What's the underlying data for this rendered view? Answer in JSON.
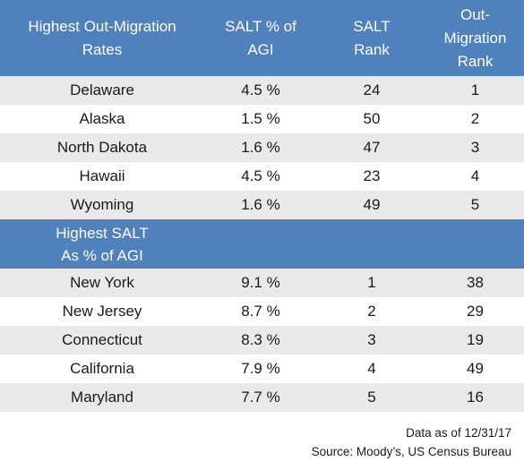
{
  "chart_data": {
    "type": "table",
    "sections": [
      {
        "header": [
          "Highest Out-Migration Rates",
          "SALT % of AGI",
          "SALT Rank",
          "Out-Migration Rank"
        ],
        "rows": [
          {
            "state": "Delaware",
            "salt_pct": "4.5 %",
            "salt_rank": "24",
            "out_rank": "1"
          },
          {
            "state": "Alaska",
            "salt_pct": "1.5 %",
            "salt_rank": "50",
            "out_rank": "2"
          },
          {
            "state": "North Dakota",
            "salt_pct": "1.6 %",
            "salt_rank": "47",
            "out_rank": "3"
          },
          {
            "state": "Hawaii",
            "salt_pct": "4.5 %",
            "salt_rank": "23",
            "out_rank": "4"
          },
          {
            "state": "Wyoming",
            "salt_pct": "1.6 %",
            "salt_rank": "49",
            "out_rank": "5"
          }
        ]
      },
      {
        "header": [
          "Highest SALT As % of AGI",
          "",
          "",
          ""
        ],
        "rows": [
          {
            "state": "New York",
            "salt_pct": "9.1 %",
            "salt_rank": "1",
            "out_rank": "38"
          },
          {
            "state": "New Jersey",
            "salt_pct": "8.7 %",
            "salt_rank": "2",
            "out_rank": "29"
          },
          {
            "state": "Connecticut",
            "salt_pct": "8.3 %",
            "salt_rank": "3",
            "out_rank": "19"
          },
          {
            "state": "California",
            "salt_pct": "7.9 %",
            "salt_rank": "4",
            "out_rank": "49"
          },
          {
            "state": "Maryland",
            "salt_pct": "7.7 %",
            "salt_rank": "5",
            "out_rank": "16"
          }
        ]
      }
    ],
    "header_lines": {
      "col0": [
        "Highest Out-Migration",
        "Rates"
      ],
      "col1": [
        "SALT % of",
        "AGI"
      ],
      "col2": [
        "SALT",
        "Rank"
      ],
      "col3": [
        "Out-",
        "Migration",
        "Rank"
      ],
      "section2_col0": [
        "Highest SALT",
        "As % of AGI"
      ]
    },
    "header_color": "#4f81bd",
    "alt_row_color": "#e9e9e9",
    "footnote": {
      "line1": "Data as of 12/31/17",
      "line2": "Source: Moody’s, US Census Bureau"
    }
  }
}
